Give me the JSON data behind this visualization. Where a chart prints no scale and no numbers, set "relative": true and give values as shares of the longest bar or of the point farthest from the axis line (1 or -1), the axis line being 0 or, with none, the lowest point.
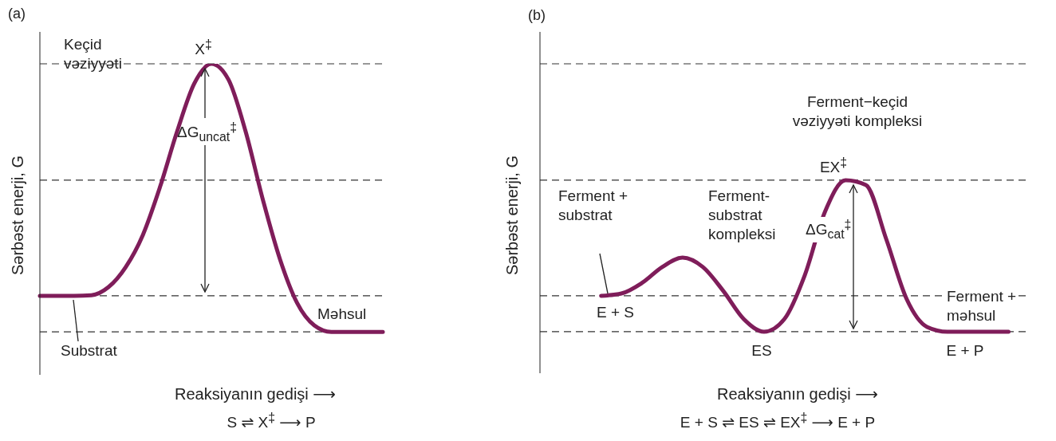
{
  "chart_data": [
    {
      "type": "line",
      "title": "(a)",
      "xlabel": "Reaksiyanın gedişi ⟶",
      "ylabel": "Sərbəst enerji, G",
      "relative": true,
      "marker": "none",
      "grid": false,
      "legend": false,
      "categories": [
        null,
        null,
        null,
        null,
        null,
        null,
        null,
        null,
        null,
        null,
        null,
        null,
        null,
        null,
        null,
        null,
        null,
        null,
        null,
        null,
        null
      ],
      "series": [
        {
          "color": "#7f1d5a",
          "values": [
            0.254,
            0.254,
            0.254,
            0.256,
            0.282,
            0.346,
            0.449,
            0.603,
            0.782,
            0.936,
            1,
            0.949,
            0.782,
            0.564,
            0.372,
            0.231,
            0.159,
            0.138,
            0.138,
            0.138,
            0.138
          ]
        }
      ],
      "ref_lines": [
        {
          "axis": "y",
          "value": 1,
          "line_style": "dashed",
          "color": "#333333"
        },
        {
          "axis": "y",
          "value": 0.626,
          "line_style": "dashed",
          "color": "#333333"
        },
        {
          "axis": "y",
          "value": 0.254,
          "line_style": "dashed",
          "color": "#333333"
        },
        {
          "axis": "y",
          "value": 0.138,
          "line_style": "dashed",
          "color": "#333333"
        }
      ],
      "annotations": [
        "Keçid\nvəziyyəti",
        "X$^{‡}$",
        "ΔG$_{uncat}$$^{‡}$",
        "Məhsul",
        "Substrat",
        "S ⇌ X$^{‡}$ ⟶ P"
      ]
    },
    {
      "type": "line",
      "title": "(b)",
      "xlabel": "Reaksiyanın gedişi ⟶",
      "ylabel": "Sərbəst enerji, G",
      "relative": true,
      "marker": "none",
      "grid": false,
      "legend": false,
      "categories": [
        null,
        null,
        null,
        null,
        null,
        null,
        null,
        null,
        null,
        null,
        null,
        null,
        null,
        null,
        null,
        null,
        null,
        null,
        null,
        null,
        null,
        null,
        null,
        null,
        null
      ],
      "series": [
        {
          "color": "#7f1d5a",
          "values": [
            null,
            null,
            null,
            0.401,
            0.413,
            0.467,
            0.55,
            0.599,
            0.55,
            0.426,
            0.281,
            0.215,
            0.281,
            0.508,
            0.839,
            1,
            0.975,
            0.694,
            0.384,
            0.24,
            0.215,
            0.215,
            0.215,
            0.215,
            null
          ]
        }
      ],
      "ref_lines": [
        {
          "axis": "y",
          "value": 1.603,
          "line_style": "dashed",
          "color": "#333333"
        },
        {
          "axis": "y",
          "value": 1,
          "line_style": "dashed",
          "color": "#333333"
        },
        {
          "axis": "y",
          "value": 0.401,
          "line_style": "dashed",
          "color": "#333333"
        },
        {
          "axis": "y",
          "value": 0.215,
          "line_style": "dashed",
          "color": "#333333"
        }
      ],
      "annotations": [
        "Ferment−keçid\nvəziyyəti kompleksi",
        "EX$^{‡}$",
        "Ferment +\nsubstrat",
        "E + S",
        "Ferment-\nsubstrat\nkompleksi",
        "ES",
        "ΔG$_{cat}$$^{‡}$",
        "Ferment +\nməhsul",
        "E + P",
        "E + S ⇌ ES ⇌ EX$^{‡}$ ⟶ E + P"
      ]
    }
  ]
}
